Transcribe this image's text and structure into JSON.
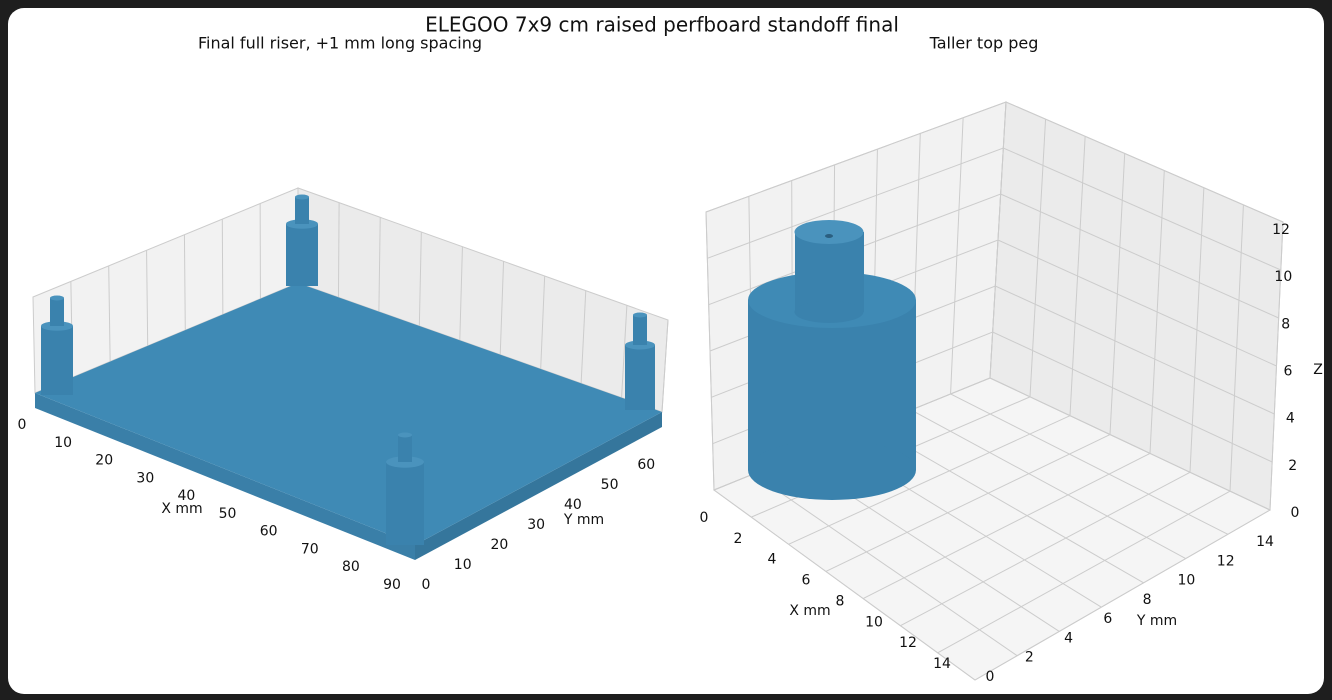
{
  "title": "ELEGOO 7x9 cm raised perfboard standoff final",
  "chart_data": [
    {
      "type": "surface3d",
      "title": "Final full riser, +1 mm long spacing",
      "x_label": "X mm",
      "y_label": "Y mm",
      "xlim": [
        0,
        90
      ],
      "xticks": [
        0,
        10,
        20,
        30,
        40,
        50,
        60,
        70,
        80,
        90
      ],
      "ylim": [
        0,
        70
      ],
      "yticks": [
        0,
        10,
        20,
        30,
        40,
        50,
        60
      ],
      "color": "#3f8ab5",
      "grid": true
    },
    {
      "type": "surface3d",
      "title": "Taller top peg",
      "x_label": "X mm",
      "y_label": "Y mm",
      "z_label": "Z",
      "xlim": [
        0,
        14
      ],
      "xticks": [
        0,
        2,
        4,
        6,
        8,
        10,
        12,
        14
      ],
      "ylim": [
        0,
        14
      ],
      "yticks": [
        0,
        2,
        4,
        6,
        8,
        10,
        12,
        14
      ],
      "zlim": [
        0,
        12
      ],
      "zticks": [
        0,
        2,
        4,
        6,
        8,
        10,
        12
      ],
      "color": "#3f8ab5",
      "grid": true
    }
  ]
}
